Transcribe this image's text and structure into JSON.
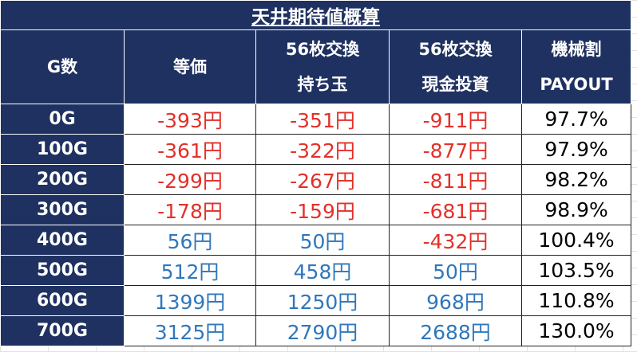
{
  "title": "天井期待値概算",
  "header": [
    [
      "G数"
    ],
    [
      "等価"
    ],
    [
      "56枚交換",
      "持ち玉"
    ],
    [
      "56枚交換",
      "現金投資"
    ],
    [
      "機械割",
      "PAYOUT"
    ]
  ],
  "colors": {
    "negative": "#e3302a",
    "positive": "#2f77bb"
  },
  "rows": [
    [
      "0G",
      "-393円",
      "-351円",
      "-911円",
      "97.7%"
    ],
    [
      "100G",
      "-361円",
      "-322円",
      "-877円",
      "97.9%"
    ],
    [
      "200G",
      "-299円",
      "-267円",
      "-811円",
      "98.2%"
    ],
    [
      "300G",
      "-178円",
      "-159円",
      "-681円",
      "98.9%"
    ],
    [
      "400G",
      "56円",
      "50円",
      "-432円",
      "100.4%"
    ],
    [
      "500G",
      "512円",
      "458円",
      "50円",
      "103.5%"
    ],
    [
      "600G",
      "1399円",
      "1250円",
      "968円",
      "110.8%"
    ],
    [
      "700G",
      "3125円",
      "2790円",
      "2688円",
      "130.0%"
    ]
  ]
}
